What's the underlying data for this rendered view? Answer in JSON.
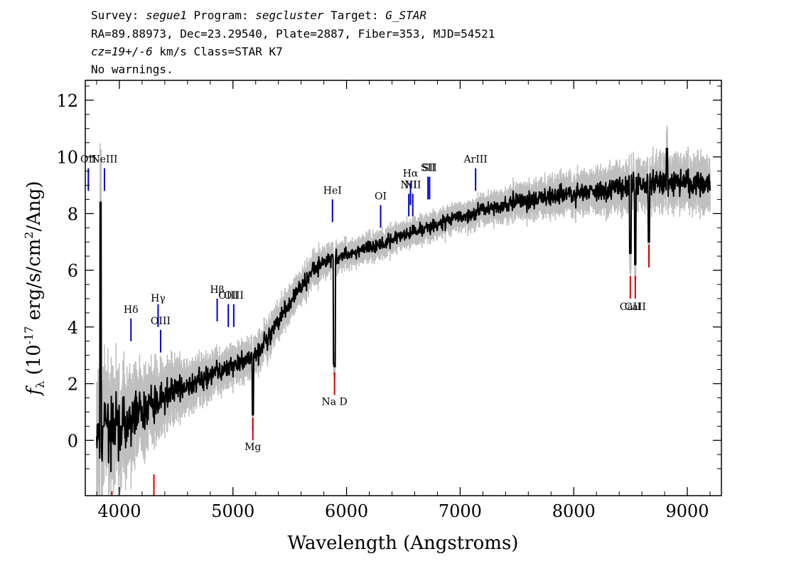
{
  "header": {
    "line1_a": "Survey: ",
    "line1_survey": "segue1",
    "line1_b": " Program: ",
    "line1_program": "segcluster",
    "line1_c": " Target: ",
    "line1_target": "G_STAR",
    "line2": "RA=89.88973, Dec=23.29540, Plate=2887, Fiber=353, MJD=54521",
    "line3_cz": "cz=19+/-6",
    "line3_rest": " km/s Class=STAR K7",
    "line4": "No warnings."
  },
  "chart_data": {
    "type": "line",
    "xlabel": "Wavelength (Angstroms)",
    "ylabel": "f_λ (10^-17 erg/s/cm^2/Ang)",
    "xlim": [
      3700,
      9300
    ],
    "ylim": [
      -1.95,
      12.7
    ],
    "x_ticks": [
      4000,
      5000,
      6000,
      7000,
      8000,
      9000
    ],
    "y_ticks": [
      0,
      2,
      4,
      6,
      8,
      10,
      12
    ],
    "colors": {
      "flux": "#000000",
      "error": "#bfbfbf",
      "emission": "#0000cc",
      "absorption": "#dd0000"
    },
    "continuum": {
      "x": [
        3800,
        3850,
        3900,
        4000,
        4100,
        4200,
        4300,
        4400,
        4500,
        4600,
        4700,
        4800,
        4900,
        5000,
        5100,
        5200,
        5300,
        5400,
        5500,
        5600,
        5700,
        5800,
        5900,
        6000,
        6100,
        6200,
        6300,
        6400,
        6500,
        6600,
        6700,
        6800,
        6900,
        7000,
        7100,
        7200,
        7400,
        7600,
        7800,
        8000,
        8200,
        8400,
        8600,
        8800,
        9000,
        9200
      ],
      "y": [
        0.2,
        0.3,
        0.4,
        0.6,
        0.8,
        1.0,
        1.2,
        1.5,
        1.7,
        1.9,
        2.1,
        2.3,
        2.5,
        2.6,
        2.8,
        3.0,
        3.6,
        4.2,
        4.8,
        5.4,
        5.9,
        6.3,
        6.5,
        6.5,
        6.7,
        6.8,
        6.9,
        7.1,
        7.2,
        7.4,
        7.5,
        7.6,
        7.8,
        7.9,
        8.0,
        8.1,
        8.3,
        8.5,
        8.6,
        8.7,
        8.8,
        8.9,
        9.0,
        9.1,
        9.1,
        9.0
      ],
      "noise": [
        1.0,
        1.0,
        0.9,
        0.8,
        0.7,
        0.6,
        0.6,
        0.5,
        0.45,
        0.4,
        0.35,
        0.35,
        0.3,
        0.3,
        0.3,
        0.3,
        0.3,
        0.28,
        0.26,
        0.25,
        0.24,
        0.23,
        0.22,
        0.22,
        0.2,
        0.2,
        0.2,
        0.2,
        0.2,
        0.2,
        0.2,
        0.2,
        0.2,
        0.2,
        0.22,
        0.22,
        0.24,
        0.26,
        0.28,
        0.3,
        0.32,
        0.34,
        0.36,
        0.38,
        0.4,
        0.4
      ]
    },
    "features": [
      {
        "x": 3835,
        "y": 8.4
      },
      {
        "x": 3860,
        "y": 0.5
      },
      {
        "x": 5175,
        "y": 0.9
      },
      {
        "x": 5890,
        "y": 2.7
      },
      {
        "x": 5896,
        "y": 2.6
      },
      {
        "x": 8498,
        "y": 6.6
      },
      {
        "x": 8542,
        "y": 6.2
      },
      {
        "x": 8662,
        "y": 7.0
      },
      {
        "x": 8820,
        "y": 10.3
      }
    ],
    "emission_lines": [
      {
        "label": "OII",
        "x": 3727,
        "y_range": [
          8.8,
          9.6
        ],
        "label_y": 9.8
      },
      {
        "label": "NeIII",
        "x": 3869,
        "y_range": [
          8.8,
          9.6
        ],
        "label_y": 9.8
      },
      {
        "label": "Hδ",
        "x": 4102,
        "y_range": [
          3.5,
          4.3
        ],
        "label_y": 4.5
      },
      {
        "label": "Hγ",
        "x": 4341,
        "y_range": [
          4.0,
          4.8
        ],
        "label_y": 4.9
      },
      {
        "label": "OIII",
        "x": 4363,
        "y_range": [
          3.1,
          3.9
        ],
        "label_y": 4.1
      },
      {
        "label": "Hβ",
        "x": 4861,
        "y_range": [
          4.2,
          5.0
        ],
        "label_y": 5.2
      },
      {
        "label": "OIII",
        "x": 4959,
        "y_range": [
          4.0,
          4.8
        ],
        "label_y": 5.0
      },
      {
        "label": "OIII",
        "x": 5007,
        "y_range": [
          4.0,
          4.8
        ],
        "label_y": 5.0
      },
      {
        "label": "HeI",
        "x": 5876,
        "y_range": [
          7.7,
          8.5
        ],
        "label_y": 8.7
      },
      {
        "label": "OI",
        "x": 6300,
        "y_range": [
          7.5,
          8.3
        ],
        "label_y": 8.5
      },
      {
        "label": "NII",
        "x": 6548,
        "y_range": [
          7.9,
          8.7
        ],
        "label_y": 8.9
      },
      {
        "label": "Hα",
        "x": 6563,
        "y_range": [
          8.3,
          9.1
        ],
        "label_y": 9.3
      },
      {
        "label": "NII",
        "x": 6583,
        "y_range": [
          7.9,
          8.7
        ],
        "label_y": 8.9
      },
      {
        "label": "SII",
        "x": 6717,
        "y_range": [
          8.5,
          9.3
        ],
        "label_y": 9.5
      },
      {
        "label": "SII",
        "x": 6731,
        "y_range": [
          8.5,
          9.3
        ],
        "label_y": 9.5
      },
      {
        "label": "ArIII",
        "x": 7136,
        "y_range": [
          8.8,
          9.6
        ],
        "label_y": 9.8
      }
    ],
    "absorption_lines": [
      {
        "label": "",
        "x": 3934,
        "y_range": [
          -1.95,
          -1.8
        ],
        "label_y": null
      },
      {
        "label": "",
        "x": 4304,
        "y_range": [
          -1.95,
          -1.2
        ],
        "label_y": null
      },
      {
        "label": "Mg",
        "x": 5175,
        "y_range": [
          0.0,
          0.8
        ],
        "label_y": -0.35
      },
      {
        "label": "Na D",
        "x": 5894,
        "y_range": [
          1.6,
          2.4
        ],
        "label_y": 1.25
      },
      {
        "label": "CaII",
        "x": 8498,
        "y_range": [
          5.0,
          5.8
        ],
        "label_y": 4.6
      },
      {
        "label": "CaII",
        "x": 8542,
        "y_range": [
          5.0,
          5.8
        ],
        "label_y": 4.6
      },
      {
        "label": "",
        "x": 8662,
        "y_range": [
          6.1,
          6.9
        ],
        "label_y": null
      }
    ]
  }
}
